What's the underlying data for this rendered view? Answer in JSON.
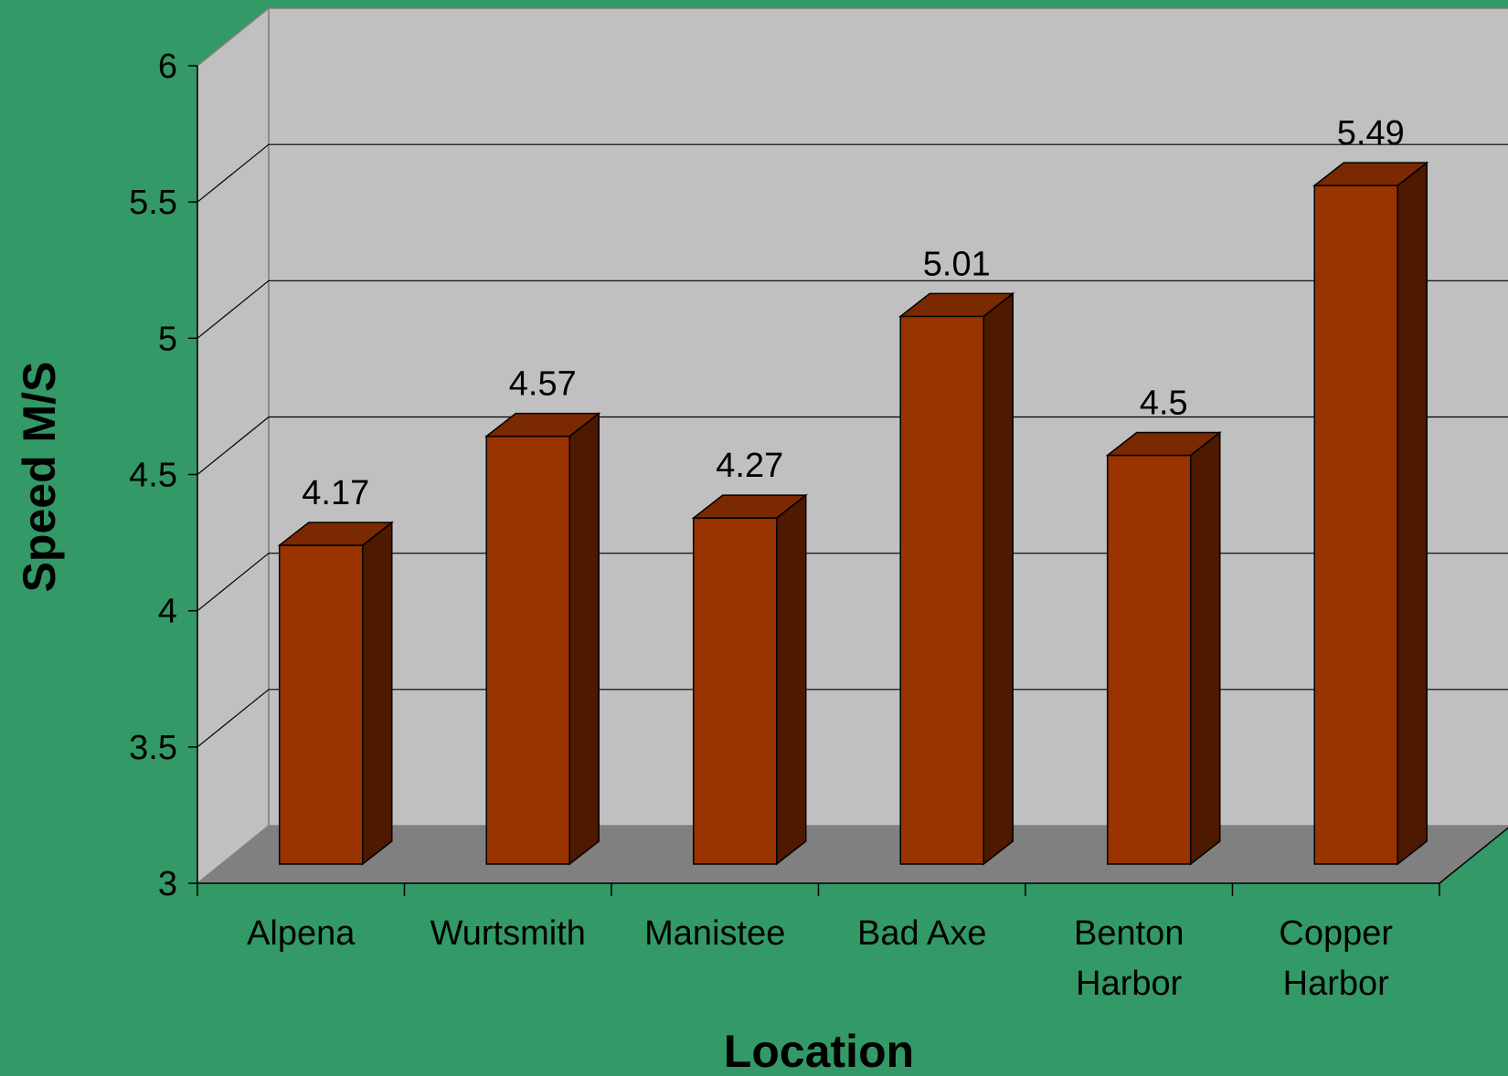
{
  "chart_data": {
    "type": "bar",
    "three_d": true,
    "categories": [
      [
        "Alpena"
      ],
      [
        "Wurtsmith"
      ],
      [
        "Manistee"
      ],
      [
        "Bad Axe"
      ],
      [
        "Benton",
        "Harbor"
      ],
      [
        "Copper",
        "Harbor"
      ]
    ],
    "values": [
      4.17,
      4.57,
      4.27,
      5.01,
      4.5,
      5.49
    ],
    "value_labels": [
      "4.17",
      "4.57",
      "4.27",
      "5.01",
      "4.5",
      "5.49"
    ],
    "xlabel": "Location",
    "ylabel": "Speed M/S",
    "ylim": [
      3,
      6
    ],
    "yticks": [
      "3",
      "3.5",
      "4",
      "4.5",
      "5",
      "5.5",
      "6"
    ],
    "grid": true,
    "legend": "none"
  },
  "colors": {
    "background": "#339966",
    "back_wall": "#C0C0C0",
    "side_wall": "#C0C0C0",
    "floor": "#808080",
    "bar_front": "#993300",
    "bar_top": "#7A2900",
    "bar_side": "#4D1900",
    "gridline": "#000000"
  }
}
